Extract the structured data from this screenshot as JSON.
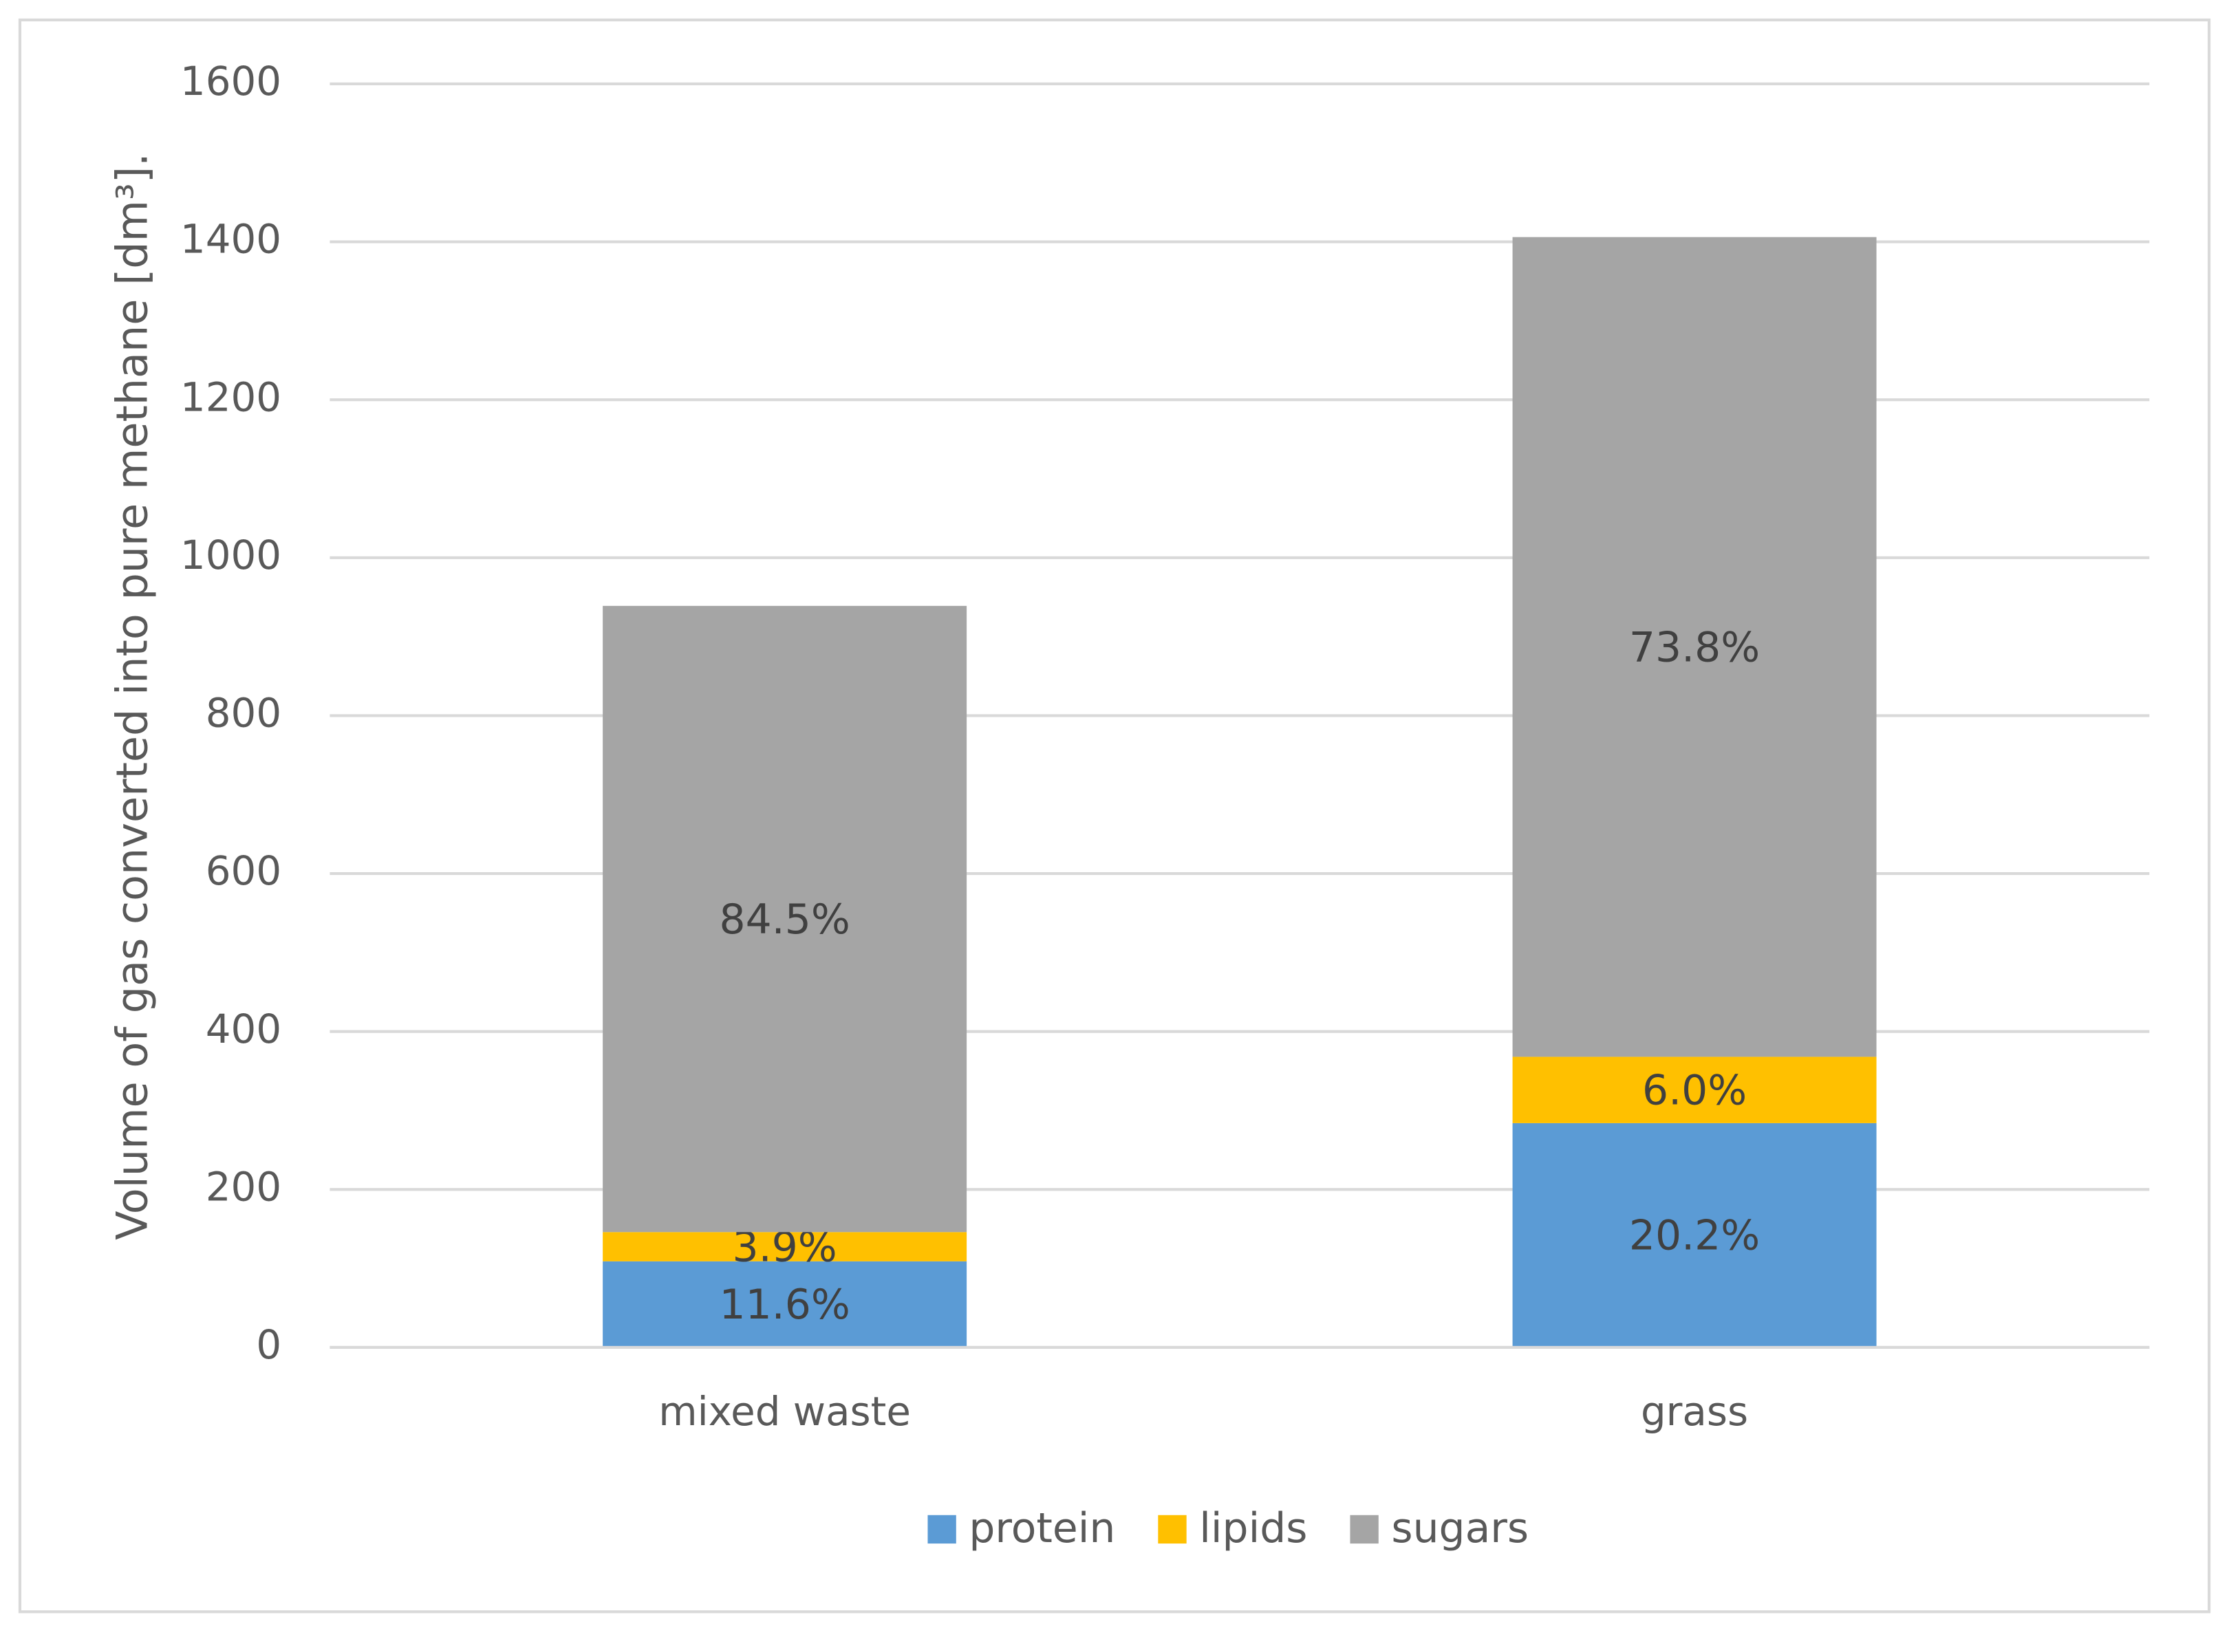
{
  "chart_data": {
    "type": "stacked-bar",
    "y_label": "Volume of gas converted into pure methane [dm³].",
    "categories": [
      "mixed waste",
      "grass"
    ],
    "series": [
      {
        "name": "protein",
        "color": "#5b9bd5",
        "values": [
          109,
          284
        ],
        "value_labels": [
          "11.6%",
          "20.2%"
        ]
      },
      {
        "name": "lipids",
        "color": "#ffc000",
        "values": [
          37,
          84
        ],
        "value_labels": [
          "3.9%",
          "6.0%"
        ]
      },
      {
        "name": "sugars",
        "color": "#a5a5a5",
        "values": [
          793,
          1038
        ],
        "value_labels": [
          "84.5%",
          "73.8%"
        ]
      }
    ],
    "ylim": [
      0,
      1600
    ],
    "yticks": [
      0,
      200,
      400,
      600,
      800,
      1000,
      1200,
      1400,
      1600
    ],
    "grid": true,
    "legend": "bottom"
  }
}
